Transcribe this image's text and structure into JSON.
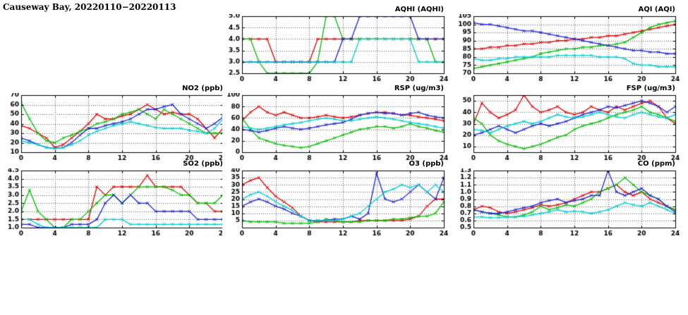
{
  "page_title": "Causeway Bay, 20220110−20220113",
  "colors": {
    "red": "#dd0000",
    "green": "#00bb00",
    "blue": "#1b22cc",
    "cyan": "#00cccc"
  },
  "chart_data": [
    {
      "key": "aqhi",
      "type": "line",
      "title": "AQHI (AQHI)",
      "x_range": [
        0,
        24
      ],
      "x_ticks": [
        0,
        4,
        8,
        12,
        16,
        20,
        24
      ],
      "y_range": [
        2.5,
        5.0
      ],
      "y_ticks": [
        2.5,
        3.0,
        3.5,
        4.0,
        4.5,
        5.0
      ],
      "y_decimals": 1,
      "grid": true,
      "legend": "none",
      "series": [
        {
          "color": "red",
          "values": [
            4,
            4,
            4,
            4,
            3,
            3,
            3,
            3,
            3,
            4,
            4,
            4,
            4,
            4,
            4,
            4,
            4,
            4,
            4,
            4,
            4,
            4,
            4,
            4,
            4
          ]
        },
        {
          "color": "green",
          "values": [
            4,
            4,
            3,
            2.5,
            2.5,
            2.5,
            2.5,
            2.5,
            2.5,
            3,
            5,
            5,
            4,
            4,
            4,
            4,
            4,
            4,
            4,
            4,
            4,
            4,
            4,
            3,
            3
          ]
        },
        {
          "color": "blue",
          "values": [
            3,
            3,
            3,
            3,
            3,
            3,
            3,
            3,
            3,
            3,
            3,
            3,
            4,
            4,
            5,
            5,
            5,
            5,
            5,
            5,
            5,
            4,
            4,
            4,
            4
          ]
        },
        {
          "color": "cyan",
          "values": [
            3,
            3,
            3,
            3,
            3,
            3,
            3,
            3,
            3,
            3,
            3,
            3,
            3,
            3,
            4,
            4,
            4,
            4,
            4,
            4,
            4,
            3,
            3,
            3,
            3
          ]
        }
      ]
    },
    {
      "key": "aqi",
      "type": "line",
      "title": "AQI (AQI)",
      "x_range": [
        0,
        24
      ],
      "x_ticks": [
        0,
        4,
        8,
        12,
        16,
        20,
        24
      ],
      "y_range": [
        70,
        105
      ],
      "y_ticks": [
        70,
        75,
        80,
        85,
        90,
        95,
        100,
        105
      ],
      "y_decimals": 0,
      "grid": true,
      "legend": "none",
      "series": [
        {
          "color": "red",
          "values": [
            85,
            85,
            86,
            86,
            87,
            87,
            88,
            88,
            89,
            89,
            90,
            90,
            91,
            91,
            92,
            92,
            93,
            93,
            94,
            95,
            96,
            97,
            98,
            99,
            100
          ]
        },
        {
          "color": "green",
          "values": [
            73,
            74,
            75,
            76,
            77,
            78,
            79,
            80,
            82,
            83,
            84,
            85,
            85,
            86,
            86,
            87,
            87,
            88,
            89,
            92,
            95,
            98,
            100,
            101,
            102
          ]
        },
        {
          "color": "blue",
          "values": [
            101,
            100,
            100,
            99,
            98,
            97,
            96,
            96,
            95,
            94,
            93,
            92,
            91,
            90,
            89,
            88,
            87,
            86,
            85,
            84,
            84,
            83,
            83,
            82,
            82
          ]
        },
        {
          "color": "cyan",
          "values": [
            79,
            78,
            78,
            79,
            79,
            80,
            80,
            80,
            80,
            80,
            81,
            81,
            81,
            81,
            81,
            80,
            80,
            80,
            79,
            76,
            75,
            75,
            74,
            74,
            74
          ]
        }
      ]
    },
    {
      "key": "no2",
      "type": "line",
      "title": "NO2 (ppb)",
      "x_range": [
        0,
        24
      ],
      "x_ticks": [
        0,
        4,
        8,
        12,
        16,
        20,
        24
      ],
      "y_range": [
        10,
        70
      ],
      "y_ticks": [
        10,
        20,
        30,
        40,
        50,
        60,
        70
      ],
      "y_decimals": 0,
      "grid": true,
      "legend": "none",
      "series": [
        {
          "color": "red",
          "values": [
            38,
            35,
            30,
            25,
            15,
            18,
            25,
            32,
            40,
            50,
            45,
            45,
            48,
            50,
            55,
            60,
            55,
            50,
            52,
            50,
            50,
            45,
            35,
            25,
            35
          ]
        },
        {
          "color": "green",
          "values": [
            62,
            45,
            30,
            22,
            20,
            25,
            28,
            32,
            35,
            40,
            42,
            45,
            50,
            52,
            55,
            50,
            45,
            55,
            50,
            45,
            40,
            35,
            30,
            30,
            30
          ]
        },
        {
          "color": "blue",
          "values": [
            25,
            22,
            18,
            15,
            14,
            15,
            20,
            28,
            35,
            35,
            38,
            40,
            42,
            45,
            50,
            55,
            55,
            58,
            60,
            50,
            45,
            40,
            35,
            40,
            47
          ]
        },
        {
          "color": "cyan",
          "values": [
            22,
            20,
            18,
            15,
            14,
            15,
            18,
            22,
            28,
            32,
            35,
            38,
            40,
            42,
            40,
            38,
            36,
            35,
            35,
            35,
            33,
            32,
            30,
            35,
            45
          ]
        }
      ]
    },
    {
      "key": "rsp",
      "type": "line",
      "title": "RSP (ug/m3)",
      "x_range": [
        0,
        24
      ],
      "x_ticks": [
        0,
        4,
        8,
        12,
        16,
        20,
        24
      ],
      "y_range": [
        0,
        100
      ],
      "y_ticks": [
        0,
        20,
        40,
        60,
        80,
        100
      ],
      "y_decimals": 0,
      "grid": true,
      "legend": "none",
      "series": [
        {
          "color": "red",
          "values": [
            55,
            70,
            80,
            70,
            65,
            70,
            65,
            60,
            60,
            62,
            65,
            62,
            60,
            62,
            65,
            68,
            70,
            70,
            68,
            65,
            65,
            62,
            60,
            58,
            55
          ]
        },
        {
          "color": "green",
          "values": [
            60,
            40,
            25,
            20,
            15,
            12,
            10,
            8,
            10,
            15,
            20,
            25,
            30,
            35,
            40,
            42,
            45,
            45,
            42,
            45,
            50,
            45,
            42,
            38,
            35
          ]
        },
        {
          "color": "blue",
          "values": [
            40,
            38,
            35,
            38,
            42,
            45,
            42,
            40,
            42,
            45,
            48,
            50,
            52,
            58,
            65,
            68,
            70,
            68,
            68,
            65,
            68,
            70,
            65,
            62,
            60
          ]
        },
        {
          "color": "cyan",
          "values": [
            45,
            42,
            40,
            42,
            45,
            48,
            50,
            52,
            55,
            58,
            60,
            58,
            55,
            55,
            58,
            60,
            62,
            60,
            58,
            55,
            52,
            50,
            48,
            45,
            42
          ]
        }
      ]
    },
    {
      "key": "fsp",
      "type": "line",
      "title": "FSP (ug/m3)",
      "x_range": [
        0,
        24
      ],
      "x_ticks": [
        0,
        4,
        8,
        12,
        16,
        20,
        24
      ],
      "y_range": [
        5,
        55
      ],
      "y_ticks": [
        10,
        20,
        30,
        40,
        50
      ],
      "y_decimals": 0,
      "grid": true,
      "legend": "none",
      "series": [
        {
          "color": "red",
          "values": [
            30,
            48,
            40,
            35,
            38,
            42,
            55,
            45,
            40,
            42,
            45,
            40,
            38,
            40,
            45,
            42,
            40,
            45,
            42,
            45,
            48,
            50,
            45,
            35,
            30
          ]
        },
        {
          "color": "green",
          "values": [
            35,
            30,
            20,
            15,
            12,
            10,
            8,
            10,
            12,
            15,
            18,
            20,
            25,
            28,
            30,
            32,
            35,
            38,
            40,
            42,
            45,
            40,
            38,
            35,
            32
          ]
        },
        {
          "color": "blue",
          "values": [
            20,
            22,
            25,
            28,
            25,
            22,
            25,
            28,
            30,
            28,
            30,
            32,
            35,
            38,
            40,
            42,
            45,
            44,
            46,
            48,
            50,
            48,
            45,
            40,
            45
          ]
        },
        {
          "color": "cyan",
          "values": [
            25,
            24,
            22,
            25,
            28,
            30,
            32,
            30,
            32,
            35,
            38,
            36,
            35,
            36,
            38,
            40,
            38,
            36,
            35,
            38,
            40,
            38,
            36,
            35,
            38
          ]
        }
      ]
    },
    {
      "key": "so2",
      "type": "line",
      "title": "SO2 (ppb)",
      "x_range": [
        0,
        24
      ],
      "x_ticks": [
        0,
        4,
        8,
        12,
        16,
        20,
        24
      ],
      "y_range": [
        1.0,
        4.5
      ],
      "y_ticks": [
        1.0,
        1.5,
        2.0,
        2.5,
        3.0,
        3.5,
        4.0,
        4.5
      ],
      "y_decimals": 1,
      "grid": true,
      "legend": "none",
      "series": [
        {
          "color": "red",
          "values": [
            1.5,
            1.5,
            1.5,
            1.5,
            1.5,
            1.5,
            1.5,
            1.5,
            1.5,
            3.5,
            3.0,
            3.5,
            3.5,
            3.5,
            3.5,
            4.2,
            3.5,
            3.5,
            3.5,
            3.5,
            3.0,
            2.5,
            2.5,
            2.0,
            2.0
          ]
        },
        {
          "color": "green",
          "values": [
            2.0,
            3.3,
            2.0,
            1.5,
            1.0,
            1.0,
            1.5,
            1.5,
            2.0,
            2.5,
            3.0,
            3.0,
            2.5,
            3.0,
            3.5,
            3.5,
            3.5,
            3.5,
            3.3,
            3.0,
            3.0,
            2.5,
            2.5,
            2.5,
            3.0
          ]
        },
        {
          "color": "blue",
          "values": [
            1.2,
            1.2,
            1.0,
            1.0,
            1.0,
            1.0,
            1.2,
            1.2,
            1.2,
            1.5,
            2.5,
            3.0,
            2.5,
            3.0,
            2.5,
            2.5,
            2.0,
            2.0,
            2.0,
            2.0,
            2.0,
            1.5,
            1.5,
            1.5,
            1.5
          ]
        },
        {
          "color": "cyan",
          "values": [
            1.5,
            1.5,
            1.2,
            1.0,
            1.0,
            1.0,
            1.0,
            1.0,
            1.0,
            1.0,
            1.5,
            1.5,
            1.5,
            1.2,
            1.2,
            1.2,
            1.2,
            1.2,
            1.2,
            1.2,
            1.2,
            1.2,
            1.2,
            1.2,
            1.2
          ]
        }
      ]
    },
    {
      "key": "o3",
      "type": "line",
      "title": "O3 (ppb)",
      "x_range": [
        0,
        24
      ],
      "x_ticks": [
        0,
        4,
        8,
        12,
        16,
        20,
        24
      ],
      "y_range": [
        0,
        40
      ],
      "y_ticks": [
        5,
        10,
        15,
        20,
        25,
        30,
        35,
        40
      ],
      "y_decimals": 0,
      "grid": true,
      "legend": "none",
      "series": [
        {
          "color": "red",
          "values": [
            30,
            33,
            35,
            28,
            22,
            18,
            14,
            8,
            5,
            4,
            4,
            4,
            4,
            4,
            5,
            5,
            5,
            5,
            5,
            5,
            6,
            8,
            15,
            20,
            20
          ]
        },
        {
          "color": "green",
          "values": [
            5,
            4,
            4,
            4,
            4,
            3,
            3,
            3,
            3,
            4,
            6,
            5,
            4,
            4,
            4,
            5,
            5,
            5,
            6,
            6,
            7,
            8,
            8,
            10,
            18
          ]
        },
        {
          "color": "blue",
          "values": [
            15,
            18,
            20,
            18,
            15,
            13,
            10,
            8,
            5,
            5,
            5,
            6,
            6,
            8,
            6,
            10,
            38,
            20,
            18,
            20,
            25,
            30,
            25,
            20,
            35
          ]
        },
        {
          "color": "cyan",
          "values": [
            20,
            23,
            25,
            22,
            18,
            15,
            12,
            8,
            5,
            5,
            5,
            5,
            6,
            8,
            10,
            15,
            20,
            25,
            27,
            30,
            28,
            30,
            25,
            30,
            25
          ]
        }
      ]
    },
    {
      "key": "co",
      "type": "line",
      "title": "CO (ppm)",
      "x_range": [
        0,
        24
      ],
      "x_ticks": [
        0,
        4,
        8,
        12,
        16,
        20,
        24
      ],
      "y_range": [
        0.5,
        1.3
      ],
      "y_ticks": [
        0.5,
        0.6,
        0.7,
        0.8,
        0.9,
        1.0,
        1.1,
        1.2,
        1.3
      ],
      "y_decimals": 1,
      "grid": true,
      "legend": "none",
      "series": [
        {
          "color": "red",
          "values": [
            0.75,
            0.8,
            0.78,
            0.72,
            0.7,
            0.72,
            0.75,
            0.78,
            0.82,
            0.8,
            0.82,
            0.85,
            0.9,
            0.95,
            1.0,
            1.0,
            1.05,
            1.1,
            1.0,
            0.95,
            1.0,
            0.9,
            0.85,
            0.8,
            0.75
          ]
        },
        {
          "color": "green",
          "values": [
            0.75,
            0.72,
            0.7,
            0.68,
            0.65,
            0.65,
            0.68,
            0.72,
            0.8,
            0.75,
            0.78,
            0.82,
            0.8,
            0.85,
            0.9,
            1.0,
            1.05,
            1.1,
            1.2,
            1.1,
            1.0,
            0.95,
            0.9,
            0.8,
            0.75
          ]
        },
        {
          "color": "blue",
          "values": [
            0.75,
            0.72,
            0.7,
            0.7,
            0.72,
            0.75,
            0.78,
            0.8,
            0.85,
            0.88,
            0.9,
            0.85,
            0.88,
            0.9,
            0.95,
            0.95,
            1.3,
            1.0,
            0.95,
            1.0,
            1.05,
            0.95,
            0.9,
            0.8,
            0.72
          ]
        },
        {
          "color": "cyan",
          "values": [
            0.65,
            0.65,
            0.64,
            0.64,
            0.65,
            0.65,
            0.66,
            0.68,
            0.7,
            0.72,
            0.75,
            0.72,
            0.73,
            0.72,
            0.7,
            0.72,
            0.75,
            0.8,
            0.85,
            0.82,
            0.8,
            0.85,
            0.8,
            0.75,
            0.7
          ]
        }
      ]
    }
  ]
}
